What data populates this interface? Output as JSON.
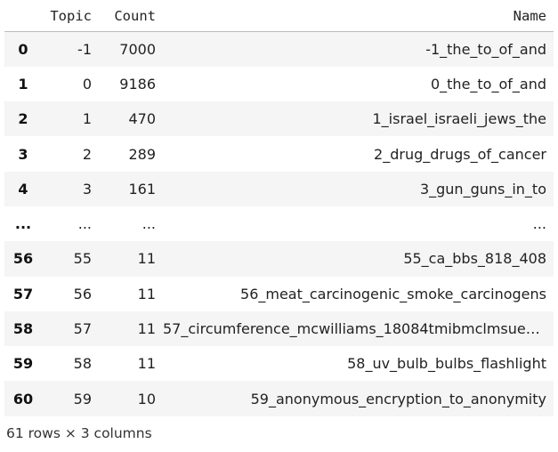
{
  "table": {
    "columns": [
      "Topic",
      "Count",
      "Name"
    ],
    "rows": [
      {
        "index": "0",
        "topic": "-1",
        "count": "7000",
        "name": "-1_the_to_of_and"
      },
      {
        "index": "1",
        "topic": "0",
        "count": "9186",
        "name": "0_the_to_of_and"
      },
      {
        "index": "2",
        "topic": "1",
        "count": "470",
        "name": "1_israel_israeli_jews_the"
      },
      {
        "index": "3",
        "topic": "2",
        "count": "289",
        "name": "2_drug_drugs_of_cancer"
      },
      {
        "index": "4",
        "topic": "3",
        "count": "161",
        "name": "3_gun_guns_in_to"
      },
      {
        "index": "...",
        "topic": "...",
        "count": "...",
        "name": "..."
      },
      {
        "index": "56",
        "topic": "55",
        "count": "11",
        "name": "55_ca_bbs_818_408"
      },
      {
        "index": "57",
        "topic": "56",
        "count": "11",
        "name": "56_meat_carcinogenic_smoke_carcinogens"
      },
      {
        "index": "58",
        "topic": "57",
        "count": "11",
        "name": "57_circumference_mcwilliams_18084tmibmclmsuedu…"
      },
      {
        "index": "59",
        "topic": "58",
        "count": "11",
        "name": "58_uv_bulb_bulbs_flashlight"
      },
      {
        "index": "60",
        "topic": "59",
        "count": "10",
        "name": "59_anonymous_encryption_to_anonymity"
      }
    ]
  },
  "footer": {
    "shape": "61 rows × 3 columns"
  }
}
